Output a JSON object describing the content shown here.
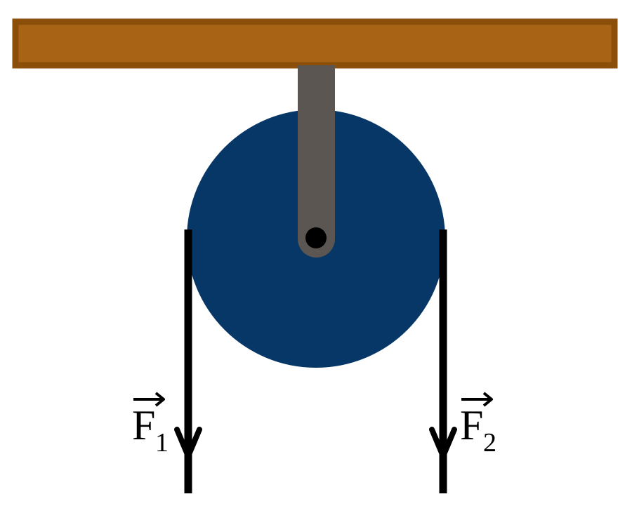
{
  "colors": {
    "background": "#ffffff",
    "beam_fill": "#a86414",
    "beam_border": "#8b4f0a",
    "pulley": "#063766",
    "axle_support": "#5b5651",
    "axle_pin": "#000000",
    "rope": "#000000"
  },
  "labels": {
    "force_left": {
      "symbol": "F",
      "subscript": "1"
    },
    "force_right": {
      "symbol": "F",
      "subscript": "2"
    }
  }
}
